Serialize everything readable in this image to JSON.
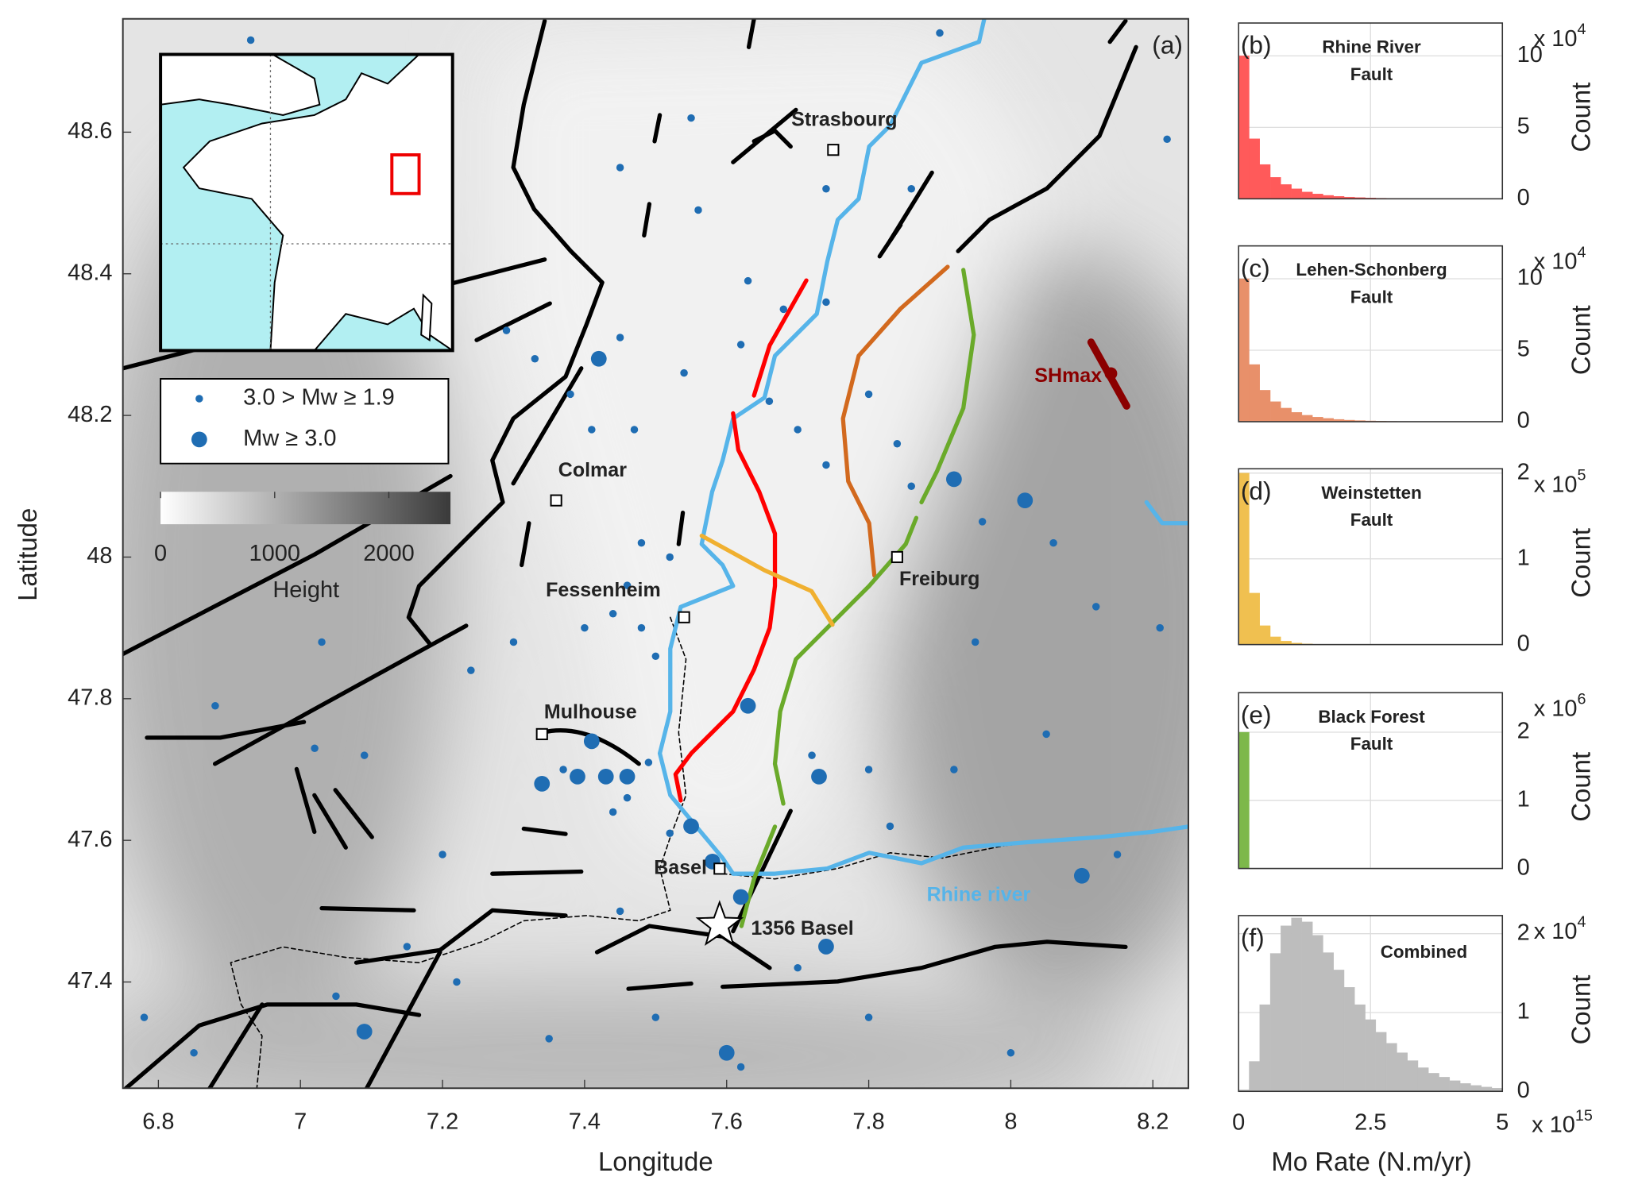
{
  "chart_data": [
    {
      "type": "scatter",
      "panel_label": "(a)",
      "xlabel": "Longitude",
      "ylabel": "Latitude",
      "xlim": [
        6.75,
        8.25
      ],
      "ylim": [
        47.25,
        48.76
      ],
      "xticks": [
        6.8,
        7,
        7.2,
        7.4,
        7.6,
        7.8,
        8,
        8.2
      ],
      "yticks": [
        47.4,
        47.6,
        47.8,
        48,
        48.2,
        48.4,
        48.6
      ],
      "series": [
        {
          "name": "3.0 > Mw ≥ 1.9",
          "color": "#1f6db3",
          "x": [
            7.55,
            7.74,
            7.56,
            7.63,
            7.68,
            7.74,
            7.86,
            8.22,
            7.29,
            7.33,
            7.38,
            7.41,
            7.45,
            7.47,
            7.54,
            7.62,
            7.66,
            7.7,
            7.74,
            7.8,
            7.84,
            7.86,
            7.96,
            8.06,
            8.12,
            8.21,
            7.48,
            7.52,
            7.46,
            7.44,
            7.4,
            7.48,
            7.5,
            7.3,
            7.24,
            7.03,
            6.88,
            7.02,
            7.09,
            7.46,
            7.52,
            7.72,
            7.8,
            7.83,
            7.92,
            7.95,
            8.05,
            8.15,
            7.2,
            7.15,
            7.22,
            7.35,
            7.5,
            7.62,
            7.8,
            8.0,
            6.78,
            6.85,
            7.05,
            7.45,
            7.7,
            7.45,
            7.9,
            6.93,
            7.37,
            7.49,
            7.44
          ],
          "y": [
            48.62,
            48.52,
            48.49,
            48.39,
            48.35,
            48.36,
            48.52,
            48.59,
            48.32,
            48.28,
            48.23,
            48.18,
            48.31,
            48.18,
            48.26,
            48.3,
            48.22,
            48.18,
            48.13,
            48.23,
            48.16,
            48.1,
            48.05,
            48.02,
            47.93,
            47.9,
            48.02,
            48.0,
            47.96,
            47.92,
            47.9,
            47.9,
            47.86,
            47.88,
            47.84,
            47.88,
            47.79,
            47.73,
            47.72,
            47.66,
            47.61,
            47.72,
            47.7,
            47.62,
            47.7,
            47.88,
            47.75,
            47.58,
            47.58,
            47.45,
            47.4,
            47.32,
            47.35,
            47.28,
            47.35,
            47.3,
            47.35,
            47.3,
            47.38,
            47.5,
            47.42,
            48.55,
            48.74,
            48.73,
            47.7,
            47.71,
            47.64
          ]
        },
        {
          "name": "Mw ≥ 3.0",
          "color": "#1f6db3",
          "x": [
            7.42,
            7.41,
            7.34,
            7.39,
            7.43,
            7.46,
            7.55,
            7.63,
            7.73,
            7.92,
            8.02,
            8.1,
            7.62,
            7.74,
            7.6,
            7.09,
            7.58
          ],
          "y": [
            48.28,
            47.74,
            47.68,
            47.69,
            47.69,
            47.69,
            47.62,
            47.79,
            47.69,
            48.11,
            48.08,
            47.55,
            47.52,
            47.45,
            47.3,
            47.33,
            47.57
          ]
        }
      ],
      "cities": [
        {
          "label": "Strasbourg",
          "x": 7.75,
          "y": 48.575
        },
        {
          "label": "Colmar",
          "x": 7.36,
          "y": 48.08
        },
        {
          "label": "Fessenheim",
          "x": 7.54,
          "y": 47.915
        },
        {
          "label": "Mulhouse",
          "x": 7.34,
          "y": 47.75
        },
        {
          "label": "Freiburg",
          "x": 7.84,
          "y": 48.0
        },
        {
          "label": "Basel",
          "x": 7.59,
          "y": 47.56
        }
      ],
      "epicenter": {
        "label": "1356 Basel",
        "x": 7.59,
        "y": 47.48
      },
      "river_label": "Rhine river",
      "stress_label": "SHmax",
      "colorbar": {
        "label": "Height",
        "lim": [
          0,
          2540
        ],
        "ticks": [
          0,
          1000,
          2000
        ]
      }
    },
    {
      "type": "histogram",
      "panel_label": "(b)",
      "title": [
        "Rhine River",
        "Fault"
      ],
      "color": "#ff5a5a",
      "xlim": [
        0,
        5000000000000000.0
      ],
      "xticks": [
        0,
        2500000000000000.0,
        5000000000000000.0
      ],
      "ylim": [
        0,
        123000
      ],
      "yticks": [
        0,
        {
          "value": 50000,
          "label": "5"
        },
        {
          "value": 100000,
          "label": "10"
        }
      ],
      "y_exponent_base": "x 10",
      "y_exponent": "4",
      "ylabel": "Count",
      "bins": [
        0,
        200000000000000.0,
        400000000000000.0,
        600000000000000.0,
        800000000000000.0,
        1000000000000000.0,
        1200000000000000.0,
        1400000000000000.0,
        1600000000000000.0,
        1800000000000000.0,
        2000000000000000.0,
        2200000000000000.0,
        2400000000000000.0,
        2600000000000000.0,
        2800000000000000.0,
        3000000000000000.0,
        3200000000000000.0,
        3400000000000000.0,
        3600000000000000.0,
        3800000000000000.0,
        4000000000000000.0,
        4200000000000000.0,
        4400000000000000.0,
        4600000000000000.0,
        4800000000000000.0,
        5000000000000000.0
      ],
      "counts": [
        100000,
        42000,
        24000,
        15000,
        10000,
        7000,
        4800,
        3400,
        2400,
        1700,
        1200,
        850,
        600,
        420,
        300,
        210,
        150,
        100,
        70,
        50,
        35,
        25,
        15,
        10,
        5
      ]
    },
    {
      "type": "histogram",
      "panel_label": "(c)",
      "title": [
        "Lehen-Schonberg",
        "Fault"
      ],
      "color": "#e8906a",
      "xlim": [
        0,
        5000000000000000.0
      ],
      "xticks": [
        0,
        2500000000000000.0,
        5000000000000000.0
      ],
      "ylim": [
        0,
        123000
      ],
      "yticks": [
        0,
        {
          "value": 50000,
          "label": "5"
        },
        {
          "value": 100000,
          "label": "10"
        }
      ],
      "y_exponent_base": "x 10",
      "y_exponent": "4",
      "ylabel": "Count",
      "bins": [
        0,
        200000000000000.0,
        400000000000000.0,
        600000000000000.0,
        800000000000000.0,
        1000000000000000.0,
        1200000000000000.0,
        1400000000000000.0,
        1600000000000000.0,
        1800000000000000.0,
        2000000000000000.0,
        2200000000000000.0,
        2400000000000000.0,
        2600000000000000.0,
        2800000000000000.0,
        3000000000000000.0,
        3200000000000000.0,
        3400000000000000.0,
        3600000000000000.0,
        3800000000000000.0,
        4000000000000000.0,
        4200000000000000.0,
        4400000000000000.0,
        4600000000000000.0,
        4800000000000000.0,
        5000000000000000.0
      ],
      "counts": [
        100000,
        40000,
        22000,
        14000,
        9500,
        6500,
        4500,
        3200,
        2300,
        1600,
        1100,
        800,
        550,
        380,
        260,
        180,
        120,
        80,
        50,
        30,
        20,
        12,
        8,
        5,
        3
      ]
    },
    {
      "type": "histogram",
      "panel_label": "(d)",
      "title": [
        "Weinstetten",
        "Fault"
      ],
      "color": "#f0c050",
      "xlim": [
        0,
        5000000000000000.0
      ],
      "xticks": [
        0,
        2500000000000000.0,
        5000000000000000.0
      ],
      "ylim": [
        0,
        205000
      ],
      "yticks": [
        0,
        {
          "value": 100000,
          "label": "1"
        },
        {
          "value": 200000,
          "label": "2"
        }
      ],
      "y_exponent_base": "x 10",
      "y_exponent": "5",
      "ylabel": "Count",
      "bins": [
        0,
        200000000000000.0,
        400000000000000.0,
        600000000000000.0,
        800000000000000.0,
        1000000000000000.0,
        1200000000000000.0,
        1400000000000000.0,
        1600000000000000.0,
        1800000000000000.0,
        2000000000000000.0,
        2200000000000000.0,
        2400000000000000.0,
        2600000000000000.0,
        2800000000000000.0,
        3000000000000000.0,
        3200000000000000.0,
        3400000000000000.0,
        3600000000000000.0,
        3800000000000000.0,
        4000000000000000.0,
        4200000000000000.0,
        4400000000000000.0,
        4600000000000000.0,
        4800000000000000.0,
        5000000000000000.0
      ],
      "counts": [
        200000,
        60000,
        22000,
        9000,
        4000,
        1800,
        800,
        350,
        150,
        60,
        25,
        10,
        4,
        2,
        1,
        0,
        0,
        0,
        0,
        0,
        0,
        0,
        0,
        0,
        0
      ]
    },
    {
      "type": "histogram",
      "panel_label": "(e)",
      "title": [
        "Black Forest",
        "Fault"
      ],
      "color": "#7db84a",
      "xlim": [
        0,
        5000000000000000.0
      ],
      "xticks": [
        0,
        2500000000000000.0,
        5000000000000000.0
      ],
      "ylim": [
        0,
        2580000
      ],
      "yticks": [
        0,
        {
          "value": 1000000,
          "label": "1"
        },
        {
          "value": 2000000,
          "label": "2"
        }
      ],
      "y_exponent_base": "x 10",
      "y_exponent": "6",
      "ylabel": "Count",
      "bins": [
        0,
        200000000000000.0,
        400000000000000.0,
        600000000000000.0,
        800000000000000.0,
        1000000000000000.0,
        1200000000000000.0,
        1400000000000000.0,
        1600000000000000.0,
        1800000000000000.0,
        2000000000000000.0,
        2200000000000000.0,
        2400000000000000.0,
        2600000000000000.0,
        2800000000000000.0,
        3000000000000000.0,
        3200000000000000.0,
        3400000000000000.0,
        3600000000000000.0,
        3800000000000000.0,
        4000000000000000.0,
        4200000000000000.0,
        4400000000000000.0,
        4600000000000000.0,
        4800000000000000.0,
        5000000000000000.0
      ],
      "counts": [
        2000000,
        0,
        0,
        0,
        0,
        0,
        0,
        0,
        0,
        0,
        0,
        0,
        0,
        0,
        0,
        0,
        0,
        0,
        0,
        0,
        0,
        0,
        0,
        0,
        0
      ]
    },
    {
      "type": "histogram",
      "panel_label": "(f)",
      "title": [
        "Combined"
      ],
      "color": "#bdbdbd",
      "xlim": [
        0,
        5000000000000000.0
      ],
      "xticks": [
        0,
        {
          "value": 2500000000000000.0,
          "label": "2.5"
        },
        {
          "value": 5000000000000000.0,
          "label": "5"
        }
      ],
      "x_exponent_base": "x 10",
      "x_exponent": "15",
      "xlabel": "Mo Rate (N.m/yr)",
      "ylim": [
        0,
        22300
      ],
      "yticks": [
        0,
        {
          "value": 10000,
          "label": "1"
        },
        {
          "value": 20000,
          "label": "2"
        }
      ],
      "y_exponent_base": "x 10",
      "y_exponent": "4",
      "ylabel": "Count",
      "bins": [
        0,
        200000000000000.0,
        400000000000000.0,
        600000000000000.0,
        800000000000000.0,
        1000000000000000.0,
        1200000000000000.0,
        1400000000000000.0,
        1600000000000000.0,
        1800000000000000.0,
        2000000000000000.0,
        2200000000000000.0,
        2400000000000000.0,
        2600000000000000.0,
        2800000000000000.0,
        3000000000000000.0,
        3200000000000000.0,
        3400000000000000.0,
        3600000000000000.0,
        3800000000000000.0,
        4000000000000000.0,
        4200000000000000.0,
        4400000000000000.0,
        4600000000000000.0,
        4800000000000000.0,
        5000000000000000.0
      ],
      "counts": [
        200,
        3800,
        11000,
        17500,
        21000,
        22000,
        21500,
        19800,
        17600,
        15400,
        13200,
        11000,
        9100,
        7500,
        6100,
        4900,
        3900,
        3000,
        2300,
        1800,
        1350,
        1000,
        750,
        550,
        400
      ]
    }
  ]
}
